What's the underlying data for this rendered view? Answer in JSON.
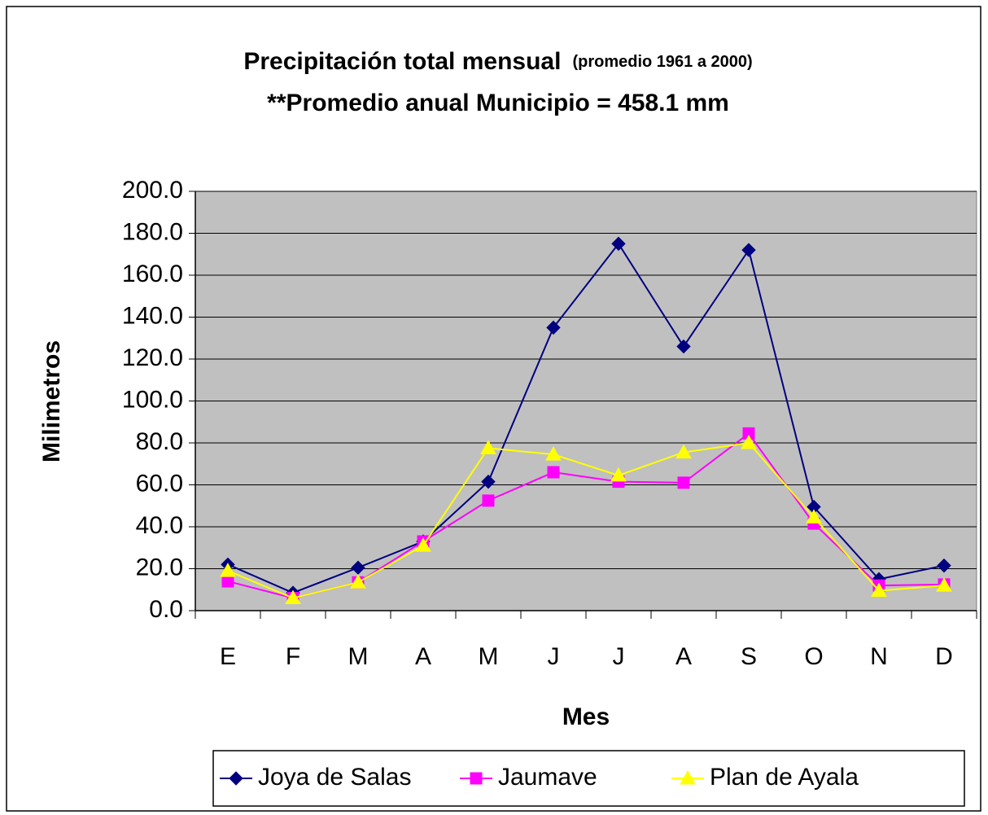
{
  "chart_data": {
    "type": "line",
    "title": "Precipitación total mensual",
    "title_note": "(promedio 1961 a 2000)",
    "subtitle": "**Promedio anual Municipio = 458.1 mm",
    "x_label": "Mes",
    "y_label": "Milimetros",
    "categories": [
      "E",
      "F",
      "M",
      "A",
      "M",
      "J",
      "J",
      "A",
      "S",
      "O",
      "N",
      "D"
    ],
    "series": [
      {
        "name": "Joya de Salas",
        "color": "#000080",
        "marker": "diamond",
        "values": [
          22,
          8.5,
          20.5,
          33,
          61.5,
          135,
          175,
          126,
          172,
          49.5,
          15,
          21.5
        ]
      },
      {
        "name": "Jaumave",
        "color": "#ff00ff",
        "marker": "square",
        "values": [
          14,
          6,
          13.5,
          33,
          52.5,
          66,
          61.5,
          61,
          84.5,
          41.5,
          12,
          12.5
        ]
      },
      {
        "name": "Plan de Ayala",
        "color": "#ffff00",
        "marker": "triangle",
        "values": [
          19,
          6,
          13.5,
          31,
          77.5,
          74.5,
          64.5,
          75.5,
          80,
          44.5,
          9.5,
          12
        ]
      }
    ],
    "ylim": [
      0,
      200
    ],
    "yticks": [
      {
        "value": 0,
        "label": "0.0"
      },
      {
        "value": 20,
        "label": "20.0"
      },
      {
        "value": 40,
        "label": "40.0"
      },
      {
        "value": 60,
        "label": "60.0"
      },
      {
        "value": 80,
        "label": "80.0"
      },
      {
        "value": 100,
        "label": "100.0"
      },
      {
        "value": 120,
        "label": "120.0"
      },
      {
        "value": 140,
        "label": "140.0"
      },
      {
        "value": 160,
        "label": "160.0"
      },
      {
        "value": 180,
        "label": "180.0"
      },
      {
        "value": 200,
        "label": "200.0"
      }
    ],
    "grid": true,
    "legend": "bottom"
  }
}
